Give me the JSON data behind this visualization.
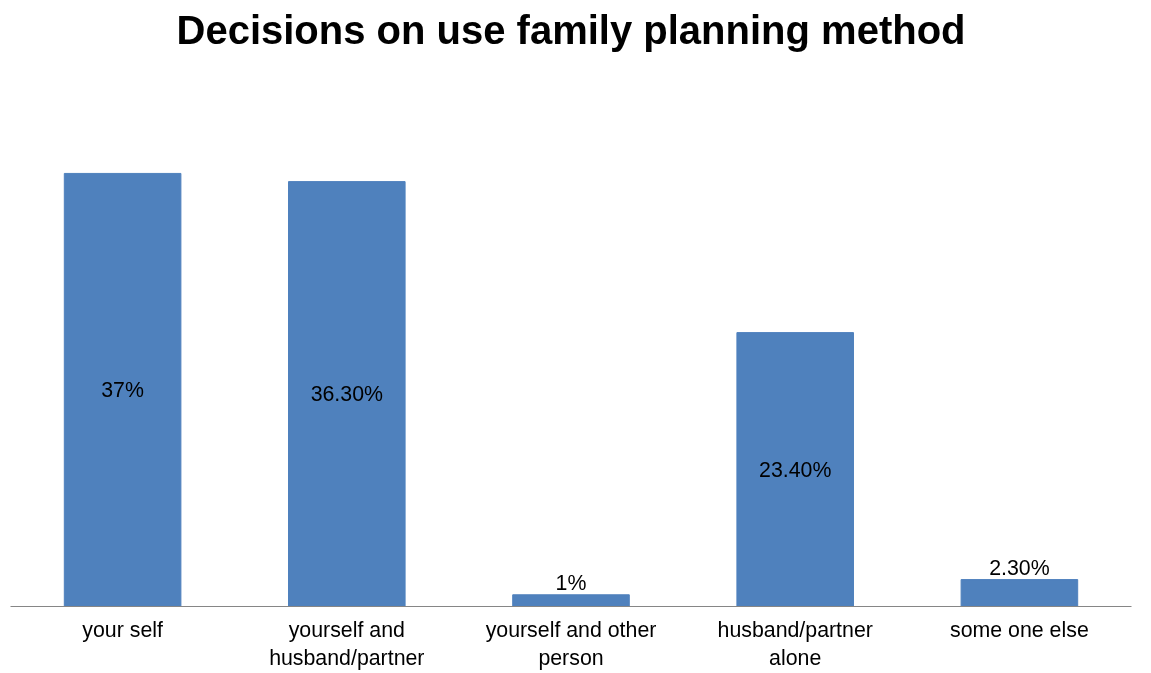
{
  "chart_data": {
    "type": "bar",
    "title": "Decisions on use family planning method",
    "categories": [
      "your self",
      "yourself and husband/partner",
      "yourself and other person",
      "husband/partner alone",
      "some one else"
    ],
    "values": [
      37,
      36.3,
      1,
      23.4,
      2.3
    ],
    "value_labels": [
      "37%",
      "36.30%",
      "1%",
      "23.40%",
      "2.30%"
    ],
    "color": "#4f81bd"
  }
}
